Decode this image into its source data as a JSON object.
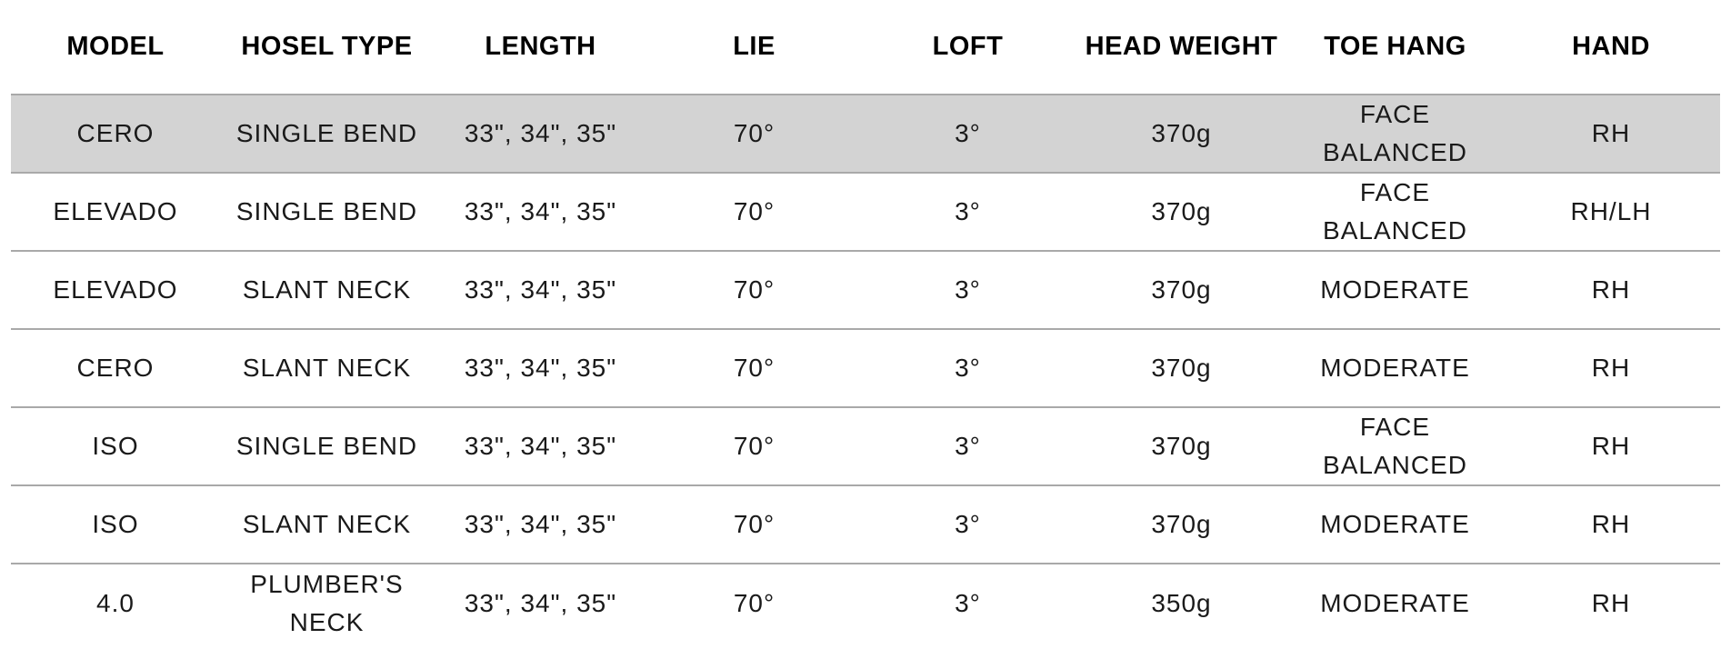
{
  "columns": [
    "MODEL",
    "HOSEL TYPE",
    "LENGTH",
    "LIE",
    "LOFT",
    "HEAD WEIGHT",
    "TOE HANG",
    "HAND"
  ],
  "rows": [
    {
      "model": "CERO",
      "hosel": "SINGLE BEND",
      "length": "33\", 34\", 35\"",
      "lie": "70°",
      "loft": "3°",
      "head_weight": "370g",
      "toe_hang": "FACE BALANCED",
      "hand": "RH",
      "highlighted": true
    },
    {
      "model": "ELEVADO",
      "hosel": "SINGLE BEND",
      "length": "33\", 34\", 35\"",
      "lie": "70°",
      "loft": "3°",
      "head_weight": "370g",
      "toe_hang": "FACE BALANCED",
      "hand": "RH/LH",
      "highlighted": false
    },
    {
      "model": "ELEVADO",
      "hosel": "SLANT NECK",
      "length": "33\", 34\", 35\"",
      "lie": "70°",
      "loft": "3°",
      "head_weight": "370g",
      "toe_hang": "MODERATE",
      "hand": "RH",
      "highlighted": false
    },
    {
      "model": "CERO",
      "hosel": "SLANT NECK",
      "length": "33\", 34\", 35\"",
      "lie": "70°",
      "loft": "3°",
      "head_weight": "370g",
      "toe_hang": "MODERATE",
      "hand": "RH",
      "highlighted": false
    },
    {
      "model": "ISO",
      "hosel": "SINGLE BEND",
      "length": "33\", 34\", 35\"",
      "lie": "70°",
      "loft": "3°",
      "head_weight": "370g",
      "toe_hang": "FACE BALANCED",
      "hand": "RH",
      "highlighted": false
    },
    {
      "model": "ISO",
      "hosel": "SLANT NECK",
      "length": "33\", 34\", 35\"",
      "lie": "70°",
      "loft": "3°",
      "head_weight": "370g",
      "toe_hang": "MODERATE",
      "hand": "RH",
      "highlighted": false
    },
    {
      "model": "4.0",
      "hosel": "PLUMBER'S NECK",
      "length": "33\", 34\", 35\"",
      "lie": "70°",
      "loft": "3°",
      "head_weight": "350g",
      "toe_hang": "MODERATE",
      "hand": "RH",
      "highlighted": false
    }
  ],
  "colors": {
    "highlight_row_bg": "#d3d3d3",
    "divider": "#a9a9a9",
    "text": "#1a1a1a"
  }
}
